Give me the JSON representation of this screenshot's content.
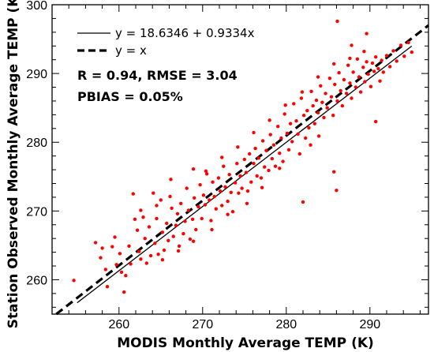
{
  "chart_data": {
    "type": "scatter",
    "xlabel": "MODIS Monthly Average TEMP (K)",
    "ylabel": "Station Observed Monthly Average TEMP (K)",
    "xlim": [
      252,
      297
    ],
    "ylim": [
      255,
      300
    ],
    "xticks": [
      "260",
      "270",
      "280",
      "290"
    ],
    "yticks": [
      "260",
      "270",
      "280",
      "290",
      "300"
    ],
    "legend": [
      {
        "label": "y = 18.6346 + 0.9334x",
        "style": "solid"
      },
      {
        "label": "y = x",
        "style": "dashed"
      }
    ],
    "stats": {
      "line1": "R = 0.94, RMSE = 3.04",
      "line2": "PBIAS = 0.05%"
    },
    "fit": {
      "intercept": 18.6346,
      "slope": 0.9334,
      "x_range": [
        255,
        295
      ]
    },
    "identity_range": [
      252.5,
      297
    ],
    "point_color": "#ff0000",
    "points": [
      [
        254.6,
        259.9
      ],
      [
        257.2,
        265.4
      ],
      [
        257.8,
        263.2
      ],
      [
        258.0,
        264.6
      ],
      [
        258.4,
        261.5
      ],
      [
        258.6,
        259.0
      ],
      [
        259.2,
        264.8
      ],
      [
        259.5,
        266.2
      ],
      [
        259.7,
        262.2
      ],
      [
        260.1,
        263.8
      ],
      [
        260.3,
        261.1
      ],
      [
        260.6,
        258.2
      ],
      [
        260.8,
        260.6
      ],
      [
        261.2,
        264.9
      ],
      [
        261.4,
        262.3
      ],
      [
        261.7,
        272.5
      ],
      [
        261.9,
        268.8
      ],
      [
        262.2,
        267.2
      ],
      [
        262.4,
        264.1
      ],
      [
        262.6,
        263.0
      ],
      [
        262.9,
        269.1
      ],
      [
        263.1,
        266.0
      ],
      [
        263.3,
        262.4
      ],
      [
        263.6,
        267.7
      ],
      [
        263.8,
        263.5
      ],
      [
        264.1,
        272.6
      ],
      [
        264.3,
        265.3
      ],
      [
        264.5,
        268.9
      ],
      [
        264.7,
        263.7
      ],
      [
        265.0,
        271.6
      ],
      [
        265.2,
        266.9
      ],
      [
        265.4,
        264.3
      ],
      [
        265.7,
        268.2
      ],
      [
        265.9,
        265.7
      ],
      [
        266.1,
        272.1
      ],
      [
        266.3,
        270.4
      ],
      [
        266.5,
        266.3
      ],
      [
        266.8,
        267.9
      ],
      [
        267.0,
        269.6
      ],
      [
        267.2,
        264.9
      ],
      [
        267.4,
        271.1
      ],
      [
        267.7,
        266.7
      ],
      [
        267.9,
        268.5
      ],
      [
        268.1,
        273.3
      ],
      [
        268.3,
        270.1
      ],
      [
        268.5,
        265.9
      ],
      [
        268.8,
        268.8
      ],
      [
        269.0,
        271.9
      ],
      [
        269.2,
        267.3
      ],
      [
        269.5,
        270.6
      ],
      [
        269.7,
        273.8
      ],
      [
        269.9,
        268.9
      ],
      [
        270.1,
        272.3
      ],
      [
        270.3,
        270.9
      ],
      [
        270.5,
        275.4
      ],
      [
        270.8,
        271.6
      ],
      [
        271.0,
        268.6
      ],
      [
        271.2,
        274.2
      ],
      [
        271.4,
        272.1
      ],
      [
        271.6,
        270.3
      ],
      [
        271.9,
        274.8
      ],
      [
        272.1,
        272.9
      ],
      [
        272.3,
        270.8
      ],
      [
        272.5,
        276.5
      ],
      [
        272.7,
        273.5
      ],
      [
        273.0,
        271.4
      ],
      [
        273.2,
        275.3
      ],
      [
        273.4,
        272.7
      ],
      [
        273.6,
        269.9
      ],
      [
        273.9,
        274.1
      ],
      [
        274.1,
        276.9
      ],
      [
        274.3,
        272.6
      ],
      [
        274.5,
        275.1
      ],
      [
        274.7,
        273.3
      ],
      [
        275.0,
        277.5
      ],
      [
        275.2,
        275.6
      ],
      [
        275.4,
        272.9
      ],
      [
        275.6,
        278.3
      ],
      [
        275.8,
        274.2
      ],
      [
        276.1,
        276.9
      ],
      [
        276.3,
        279.1
      ],
      [
        276.5,
        275.1
      ],
      [
        276.7,
        277.7
      ],
      [
        277.0,
        274.8
      ],
      [
        277.2,
        280.2
      ],
      [
        277.4,
        276.4
      ],
      [
        277.6,
        278.8
      ],
      [
        277.9,
        275.9
      ],
      [
        278.1,
        281.1
      ],
      [
        278.3,
        277.6
      ],
      [
        278.5,
        279.6
      ],
      [
        278.7,
        276.5
      ],
      [
        279.0,
        282.3
      ],
      [
        279.2,
        278.4
      ],
      [
        279.4,
        280.6
      ],
      [
        279.6,
        277.2
      ],
      [
        279.8,
        284.1
      ],
      [
        280.1,
        281.3
      ],
      [
        280.3,
        278.9
      ],
      [
        280.5,
        282.7
      ],
      [
        280.7,
        280.1
      ],
      [
        280.9,
        285.6
      ],
      [
        281.2,
        283.1
      ],
      [
        281.4,
        281.2
      ],
      [
        281.6,
        278.3
      ],
      [
        281.8,
        286.4
      ],
      [
        282.1,
        283.9
      ],
      [
        282.3,
        280.6
      ],
      [
        282.5,
        284.6
      ],
      [
        282.7,
        282.1
      ],
      [
        283.0,
        287.4
      ],
      [
        283.2,
        285.3
      ],
      [
        283.4,
        282.7
      ],
      [
        283.6,
        286.1
      ],
      [
        283.8,
        284.3
      ],
      [
        284.1,
        288.2
      ],
      [
        284.3,
        285.8
      ],
      [
        284.5,
        283.6
      ],
      [
        284.7,
        287.1
      ],
      [
        284.9,
        285.0
      ],
      [
        285.2,
        289.3
      ],
      [
        285.4,
        286.6
      ],
      [
        285.6,
        283.9
      ],
      [
        285.8,
        288.4
      ],
      [
        286.1,
        286.0
      ],
      [
        286.3,
        290.1
      ],
      [
        286.5,
        287.5
      ],
      [
        286.7,
        285.3
      ],
      [
        286.9,
        289.1
      ],
      [
        287.2,
        287.1
      ],
      [
        287.4,
        291.2
      ],
      [
        287.6,
        288.6
      ],
      [
        287.8,
        286.4
      ],
      [
        288.0,
        290.2
      ],
      [
        288.3,
        288.0
      ],
      [
        288.5,
        292.1
      ],
      [
        288.7,
        289.5
      ],
      [
        288.9,
        287.3
      ],
      [
        289.2,
        290.9
      ],
      [
        289.4,
        288.8
      ],
      [
        289.6,
        291.7
      ],
      [
        289.8,
        289.9
      ],
      [
        290.1,
        288.1
      ],
      [
        290.3,
        291.5
      ],
      [
        290.5,
        290.3
      ],
      [
        290.7,
        292.4
      ],
      [
        291.0,
        290.7
      ],
      [
        291.2,
        288.9
      ],
      [
        291.4,
        291.9
      ],
      [
        291.6,
        290.2
      ],
      [
        292.0,
        292.6
      ],
      [
        292.4,
        291.0
      ],
      [
        292.8,
        293.3
      ],
      [
        293.2,
        291.8
      ],
      [
        293.7,
        294.1
      ],
      [
        294.1,
        292.5
      ],
      [
        294.6,
        294.5
      ],
      [
        295.0,
        293.1
      ],
      [
        286.1,
        297.6
      ],
      [
        289.6,
        295.8
      ],
      [
        287.8,
        294.1
      ],
      [
        282.0,
        271.3
      ],
      [
        286.0,
        273.0
      ],
      [
        285.7,
        275.7
      ],
      [
        290.7,
        283.0
      ],
      [
        262.6,
        270.1
      ],
      [
        264.5,
        270.8
      ],
      [
        266.2,
        274.6
      ],
      [
        268.9,
        276.1
      ],
      [
        270.4,
        275.8
      ],
      [
        272.3,
        277.8
      ],
      [
        274.2,
        279.3
      ],
      [
        276.1,
        281.4
      ],
      [
        278.0,
        283.2
      ],
      [
        279.9,
        285.4
      ],
      [
        281.9,
        287.3
      ],
      [
        283.8,
        289.5
      ],
      [
        285.7,
        291.4
      ],
      [
        287.6,
        292.2
      ],
      [
        289.3,
        293.2
      ],
      [
        283.9,
        280.9
      ],
      [
        282.9,
        279.6
      ],
      [
        279.2,
        276.2
      ],
      [
        277.1,
        273.4
      ],
      [
        275.3,
        271.1
      ],
      [
        273.0,
        269.5
      ],
      [
        271.1,
        267.3
      ],
      [
        268.9,
        265.6
      ],
      [
        267.1,
        264.2
      ],
      [
        265.2,
        262.9
      ]
    ]
  }
}
